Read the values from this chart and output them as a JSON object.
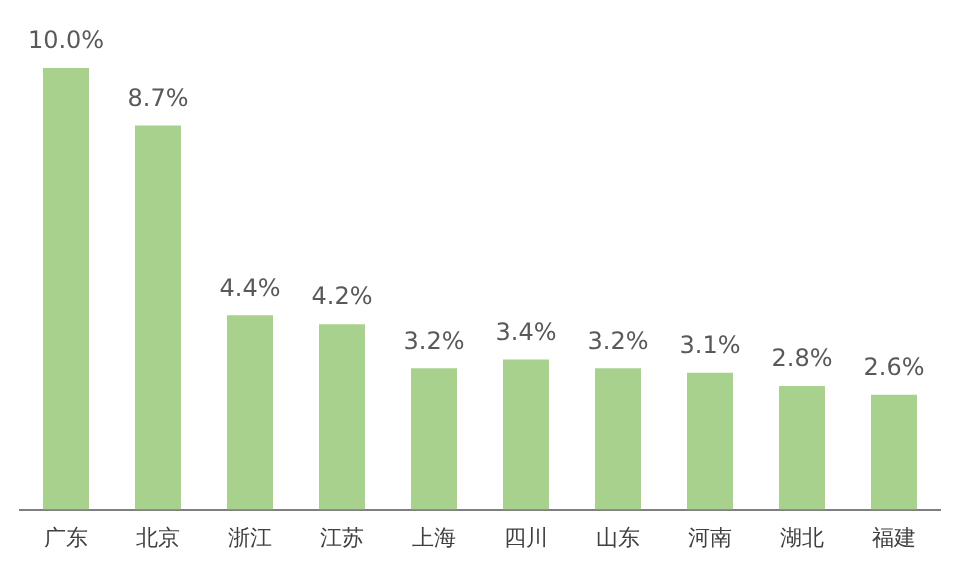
{
  "chart_data": {
    "type": "bar",
    "categories": [
      "广东",
      "北京",
      "浙江",
      "江苏",
      "上海",
      "四川",
      "山东",
      "河南",
      "湖北",
      "福建"
    ],
    "values": [
      10.0,
      8.7,
      4.4,
      4.2,
      3.2,
      3.4,
      3.2,
      3.1,
      2.8,
      2.6
    ],
    "value_labels": [
      "10.0%",
      "8.7%",
      "4.4%",
      "4.2%",
      "3.2%",
      "3.4%",
      "3.2%",
      "3.1%",
      "2.8%",
      "2.6%"
    ],
    "color": "#a9d18e",
    "grid": false,
    "legend": false
  }
}
